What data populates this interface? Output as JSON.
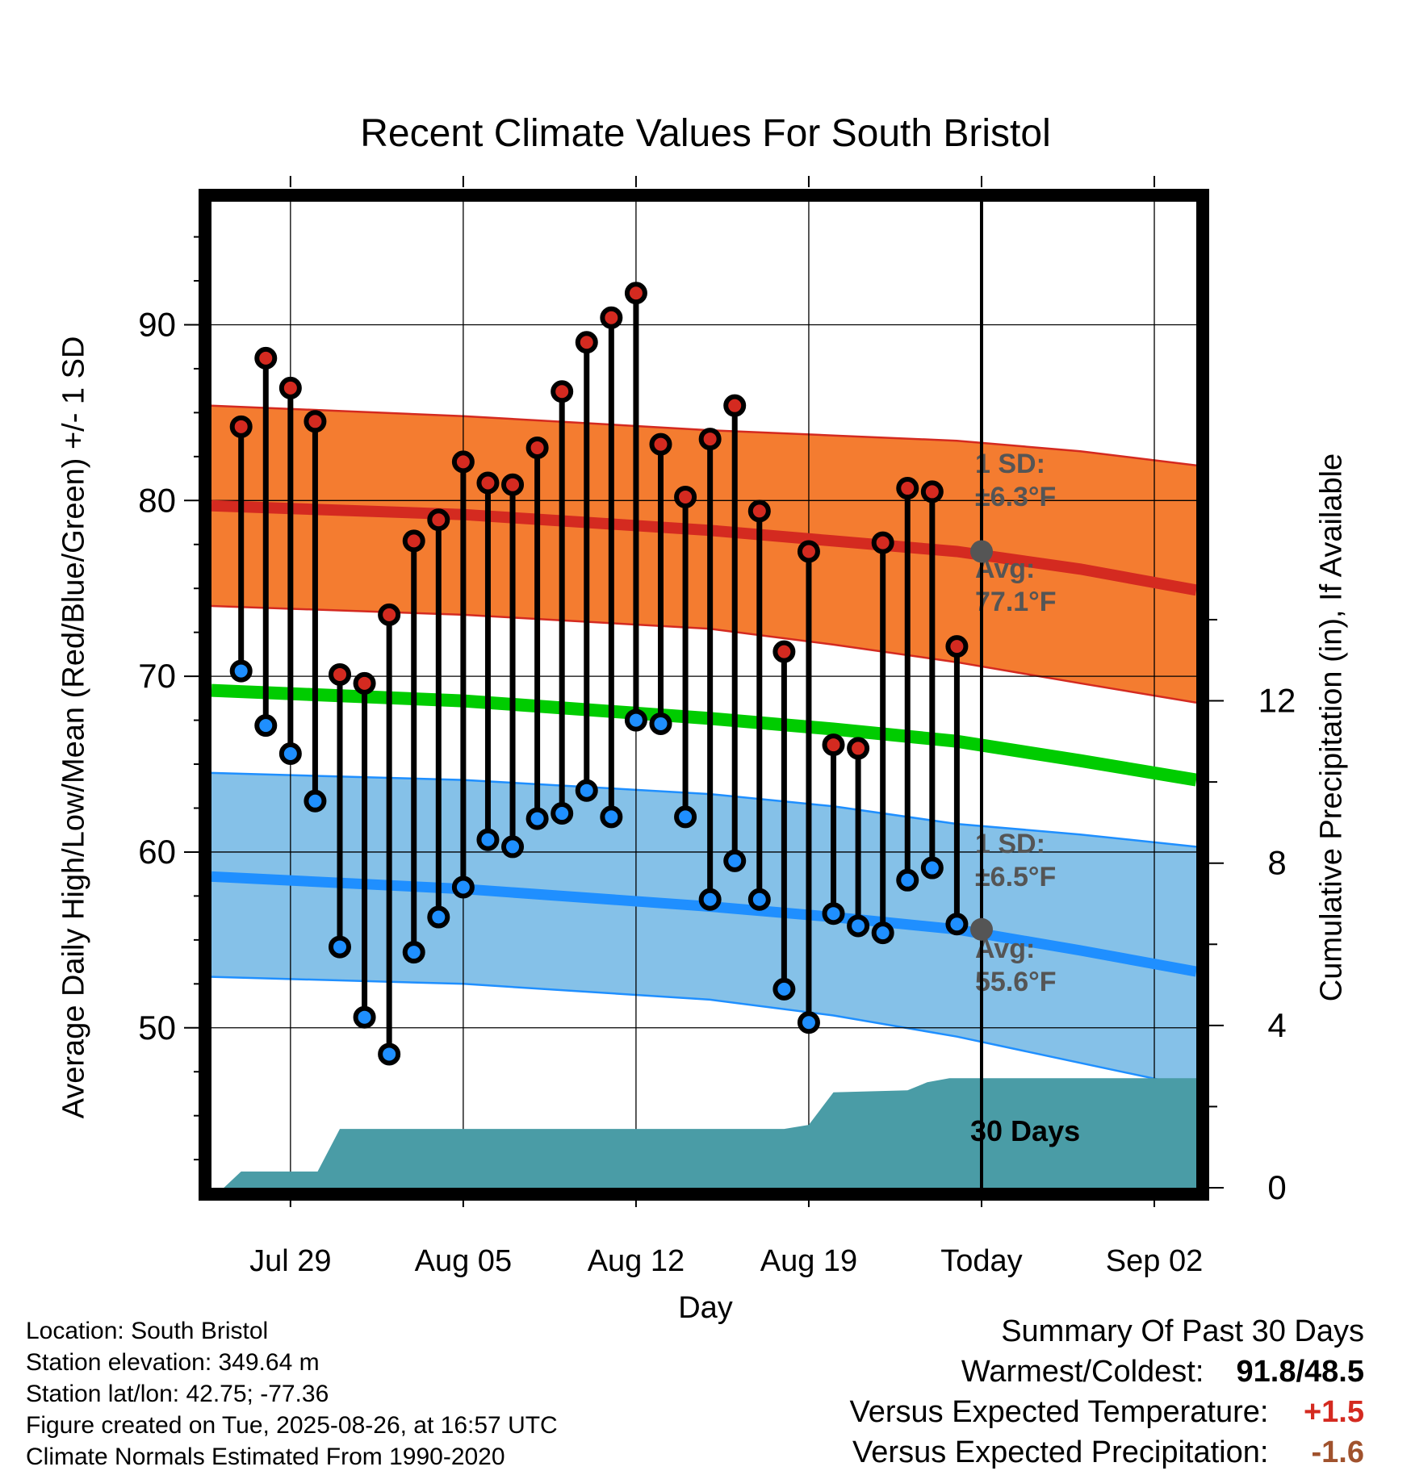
{
  "title": "Recent Climate Values For South Bristol",
  "xlabel": "Day",
  "ylabel": "Average Daily High/Low/Mean (Red/Blue/Green) +/- 1 SD",
  "y2label": "Cumulative Precipitation (in), If Available",
  "footer": {
    "location": "Location: South Bristol",
    "elevation": "Station elevation: 349.64 m",
    "latlon": "Station lat/lon: 42.75; -77.36",
    "created": "Figure created on Tue, 2025-08-26, at 16:57 UTC",
    "normals": "Climate Normals Estimated From 1990-2020"
  },
  "summary": {
    "heading": "Summary Of Past 30 Days",
    "warmest_coldest_label": "Warmest/Coldest:",
    "warmest_coldest_value": "91.8/48.5",
    "temp_label": "Versus Expected Temperature:",
    "temp_value": "+1.5",
    "precip_label": "Versus Expected Precipitation:",
    "precip_value": "-1.6"
  },
  "colors": {
    "high": "#d42a20",
    "low": "#1f8fff",
    "mean": "#00cc00",
    "high_band": "#f47c30",
    "low_band": "#85c1e8",
    "precip": "#4a9ca6",
    "temp_anomaly": "#d42a20",
    "precip_anomaly": "#a0522d"
  },
  "chart_data": {
    "type": "line",
    "x_axis": {
      "tick_labels": [
        "Jul 29",
        "Aug 05",
        "Aug 12",
        "Aug 19",
        "Today",
        "Sep 02"
      ],
      "tick_day_index": [
        3,
        10,
        17,
        24,
        31,
        38
      ],
      "range_day_index": [
        -0.2,
        39.7
      ]
    },
    "y_axis": {
      "ticks": [
        50,
        60,
        70,
        80,
        90
      ],
      "range": [
        40.9,
        97.0
      ]
    },
    "y2_axis": {
      "ticks": [
        0,
        4,
        8,
        12
      ],
      "range": [
        0,
        24.3
      ]
    },
    "today_marker": {
      "day_index": 31,
      "label": "30 Days"
    },
    "daily_observations": {
      "day_index": [
        1,
        2,
        3,
        4,
        5,
        6,
        7,
        8,
        9,
        10,
        11,
        12,
        13,
        14,
        15,
        16,
        17,
        18,
        19,
        20,
        21,
        22,
        23,
        24,
        25,
        26,
        27,
        28,
        29,
        30
      ],
      "high": [
        84.2,
        88.1,
        86.4,
        84.5,
        70.1,
        69.6,
        73.5,
        77.7,
        78.9,
        82.2,
        81.0,
        80.9,
        83.0,
        86.2,
        89.0,
        90.4,
        91.8,
        83.2,
        80.2,
        83.5,
        85.4,
        79.4,
        71.4,
        77.1,
        66.1,
        65.9,
        77.6,
        80.7,
        80.5,
        71.7
      ],
      "low": [
        70.3,
        67.2,
        65.6,
        62.9,
        54.6,
        50.6,
        48.5,
        54.3,
        56.3,
        58.0,
        60.7,
        60.3,
        61.9,
        62.2,
        63.5,
        62.0,
        67.5,
        67.3,
        62.0,
        57.3,
        59.5,
        57.3,
        52.2,
        50.3,
        56.5,
        55.8,
        55.4,
        58.4,
        59.1,
        55.9
      ]
    },
    "normals": {
      "day_index": [
        -0.2,
        10,
        20,
        25,
        30,
        35,
        39.7
      ],
      "high_mean": [
        79.7,
        79.2,
        78.3,
        77.7,
        77.1,
        76.1,
        74.9
      ],
      "high_plus_sd": [
        85.4,
        84.8,
        84.0,
        83.7,
        83.4,
        82.8,
        82.0
      ],
      "high_minus_sd": [
        74.0,
        73.5,
        72.7,
        71.8,
        70.8,
        69.6,
        68.5
      ],
      "mean": [
        69.2,
        68.6,
        67.6,
        67.0,
        66.3,
        65.2,
        64.1
      ],
      "low_mean": [
        58.6,
        57.9,
        56.9,
        56.3,
        55.6,
        54.4,
        53.2
      ],
      "low_plus_sd": [
        64.5,
        64.1,
        63.3,
        62.6,
        61.6,
        61.0,
        60.3
      ],
      "low_minus_sd": [
        52.9,
        52.5,
        51.6,
        50.7,
        49.5,
        48.0,
        46.6
      ]
    },
    "annotations": {
      "high_sd": "1 SD:",
      "high_sd_value": "±6.3°F",
      "high_avg": "Avg:",
      "high_avg_value": "77.1°F",
      "low_sd": "1 SD:",
      "low_sd_value": "±6.5°F",
      "low_avg": "Avg:",
      "low_avg_value": "55.6°F"
    },
    "cumulative_precipitation": {
      "day_index": [
        0.3,
        1.0,
        4.1,
        5.0,
        22.0,
        23.0,
        24.0,
        25.0,
        28.0,
        28.8,
        29.7,
        39.7
      ],
      "value_in": [
        0.0,
        0.4,
        0.4,
        1.45,
        1.45,
        1.45,
        1.55,
        2.35,
        2.4,
        2.6,
        2.7,
        2.7
      ]
    }
  }
}
